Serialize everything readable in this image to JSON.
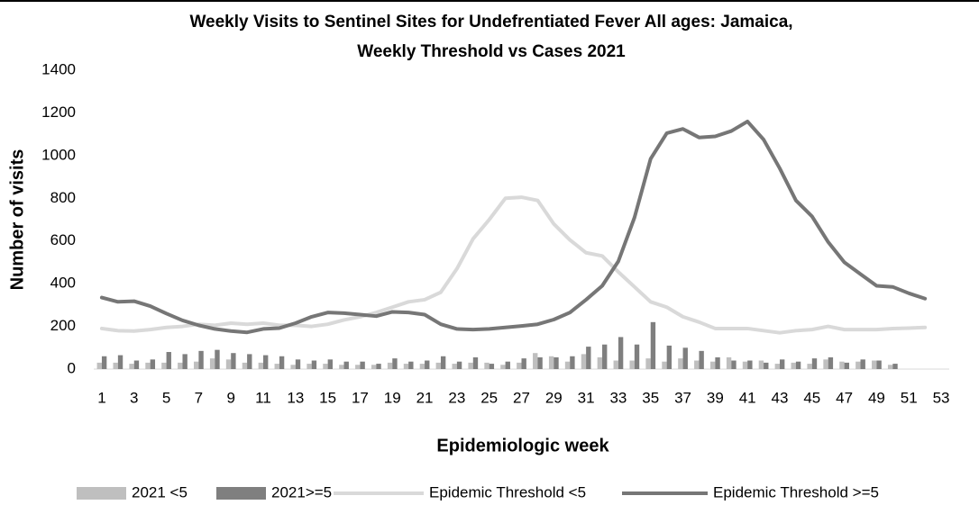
{
  "chart_data": {
    "type": "combo",
    "title": [
      "Weekly Visits to Sentinel Sites for Undefrentiated Fever All ages: Jamaica,",
      "Weekly Threshold vs Cases 2021"
    ],
    "y_label": "Number of visits",
    "x_label": "Epidemiologic week",
    "categories": [
      1,
      null,
      3,
      null,
      5,
      null,
      7,
      null,
      9,
      null,
      11,
      null,
      13,
      null,
      15,
      null,
      17,
      null,
      19,
      null,
      21,
      null,
      23,
      null,
      25,
      null,
      27,
      null,
      29,
      null,
      31,
      null,
      33,
      null,
      35,
      null,
      37,
      null,
      39,
      null,
      41,
      null,
      43,
      null,
      45,
      null,
      47,
      null,
      49,
      null,
      51,
      null,
      53
    ],
    "series": [
      {
        "name": "2021 <5",
        "type": "bar",
        "color": "#bfbfbf",
        "values": [
          30,
          30,
          25,
          30,
          30,
          30,
          35,
          50,
          45,
          30,
          30,
          25,
          20,
          25,
          25,
          20,
          20,
          20,
          30,
          25,
          25,
          30,
          25,
          30,
          30,
          20,
          30,
          75,
          60,
          35,
          70,
          55,
          40,
          40,
          50,
          35,
          50,
          40,
          35,
          55,
          35,
          40,
          25,
          30,
          25,
          45,
          35,
          35,
          40,
          20,
          null,
          null,
          null
        ]
      },
      {
        "name": "2021>=5",
        "type": "bar",
        "color": "#7f7f7f",
        "values": [
          60,
          65,
          40,
          45,
          80,
          70,
          85,
          90,
          75,
          70,
          65,
          60,
          45,
          40,
          45,
          35,
          35,
          25,
          50,
          35,
          40,
          60,
          35,
          55,
          25,
          35,
          50,
          55,
          55,
          60,
          105,
          115,
          150,
          115,
          220,
          110,
          100,
          85,
          55,
          40,
          40,
          30,
          45,
          35,
          50,
          55,
          30,
          45,
          40,
          25,
          null,
          null,
          null
        ]
      },
      {
        "name": "Epidemic Threshold <5",
        "type": "line",
        "color": "#d9d9d9",
        "values": [
          190,
          180,
          178,
          185,
          195,
          200,
          210,
          205,
          215,
          210,
          215,
          205,
          205,
          200,
          210,
          230,
          245,
          265,
          290,
          315,
          325,
          360,
          470,
          610,
          700,
          800,
          805,
          790,
          680,
          605,
          545,
          530,
          455,
          385,
          315,
          290,
          245,
          220,
          190,
          190,
          190,
          180,
          170,
          180,
          185,
          200,
          185,
          185,
          185,
          190,
          192,
          195,
          null
        ]
      },
      {
        "name": "Epidemic Threshold >=5",
        "type": "line",
        "color": "#767676",
        "values": [
          335,
          315,
          318,
          295,
          260,
          228,
          205,
          188,
          178,
          172,
          188,
          192,
          215,
          245,
          265,
          262,
          255,
          248,
          268,
          265,
          255,
          210,
          188,
          185,
          188,
          195,
          202,
          210,
          232,
          265,
          325,
          390,
          505,
          710,
          985,
          1105,
          1125,
          1085,
          1090,
          1115,
          1160,
          1075,
          940,
          790,
          715,
          595,
          500,
          445,
          390,
          385,
          355,
          330,
          null
        ]
      }
    ],
    "ylim": [
      0,
      1400
    ],
    "yticks": [
      0,
      200,
      400,
      600,
      800,
      1000,
      1200,
      1400
    ],
    "grid": false,
    "legend": "bottom"
  }
}
